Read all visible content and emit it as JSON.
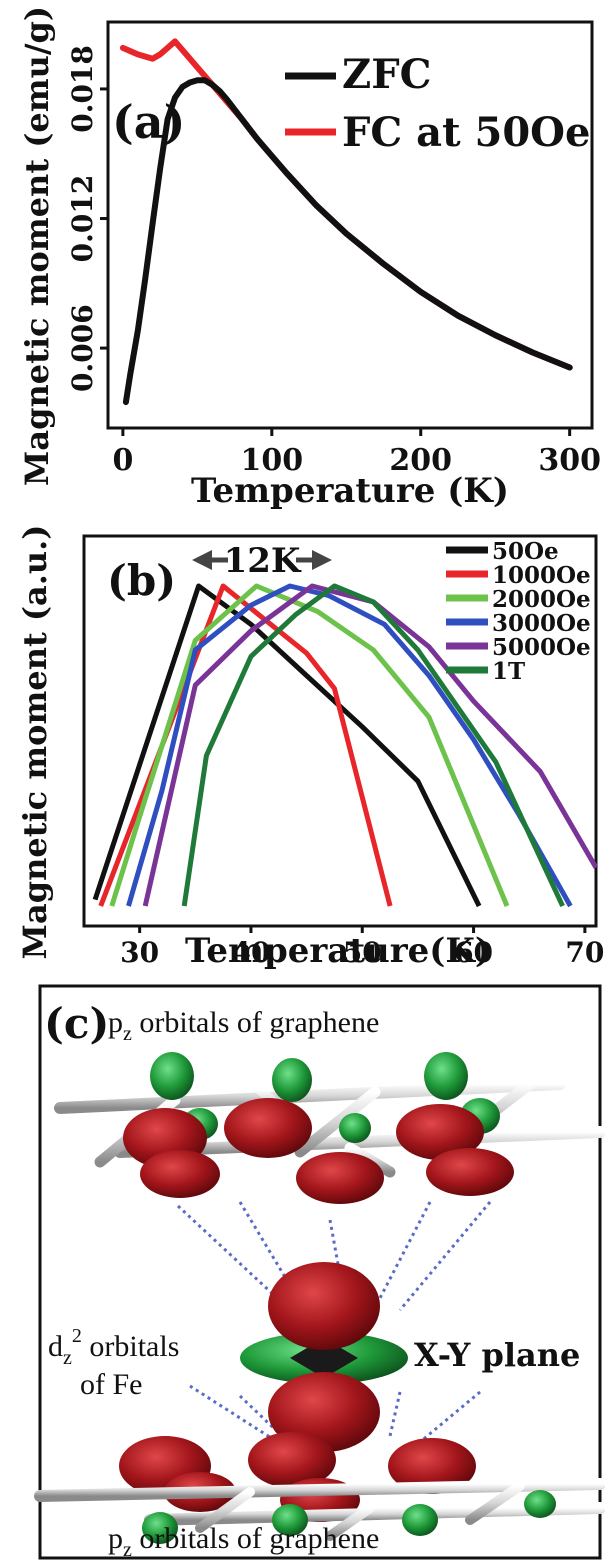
{
  "chart_data": [
    {
      "panel": "(a)",
      "type": "line",
      "xlabel": "Temperature (K)",
      "ylabel": "Magnetic moment (emu/g)",
      "xlim": [
        -10,
        315
      ],
      "ylim": [
        0.0023,
        0.0211
      ],
      "xticks": [
        0,
        100,
        200,
        300
      ],
      "yticks": [
        0.006,
        0.012,
        0.018
      ],
      "ytick_labels": [
        "0.006",
        "0.012",
        "0.018"
      ],
      "legend_position": "top-right",
      "series": [
        {
          "name": "ZFC",
          "color": "#111111",
          "x": [
            2,
            5,
            10,
            15,
            20,
            25,
            30,
            35,
            40,
            45,
            50,
            55,
            60,
            65,
            70,
            80,
            90,
            100,
            110,
            130,
            150,
            175,
            200,
            225,
            250,
            275,
            300
          ],
          "y": [
            0.0035,
            0.0048,
            0.0068,
            0.0092,
            0.0118,
            0.0143,
            0.0166,
            0.0176,
            0.0181,
            0.0183,
            0.0184,
            0.0184,
            0.0182,
            0.0179,
            0.0175,
            0.0166,
            0.0157,
            0.0149,
            0.0141,
            0.0126,
            0.0113,
            0.0099,
            0.0086,
            0.0075,
            0.0066,
            0.0058,
            0.0051
          ]
        },
        {
          "name": "FC at 50Oe",
          "color": "#e8262a",
          "x": [
            0,
            10,
            20,
            25,
            30,
            35,
            40,
            50,
            60,
            70,
            80,
            90,
            100,
            110,
            130,
            150,
            175,
            200,
            225,
            250,
            275,
            300
          ],
          "y": [
            0.0199,
            0.0196,
            0.0194,
            0.0196,
            0.0199,
            0.0202,
            0.0198,
            0.019,
            0.0182,
            0.0174,
            0.0166,
            0.0157,
            0.0149,
            0.0141,
            0.0126,
            0.0113,
            0.0099,
            0.0086,
            0.0075,
            0.0066,
            0.0058,
            0.0051
          ]
        }
      ]
    },
    {
      "panel": "(b)",
      "type": "line",
      "xlabel": "Temperature(K)",
      "ylabel": "Magnetic moment (a.u.)",
      "xlim": [
        25,
        71
      ],
      "ylim": [
        0,
        1
      ],
      "xticks": [
        30,
        40,
        50,
        60,
        70
      ],
      "annotation": "12K",
      "legend_position": "top-right",
      "series": [
        {
          "name": "50Oe",
          "color": "#111111",
          "x": [
            26,
            35.3,
            40,
            45,
            50,
            55,
            60.5
          ],
          "y": [
            0.02,
            1.0,
            0.88,
            0.72,
            0.56,
            0.39,
            0.0
          ]
        },
        {
          "name": "1000Oe",
          "color": "#e8262a",
          "x": [
            26.5,
            37.5,
            45,
            47.5,
            52.5
          ],
          "y": [
            0.0,
            1.0,
            0.79,
            0.68,
            0.0
          ]
        },
        {
          "name": "2000Oe",
          "color": "#6cc24a",
          "x": [
            27.5,
            30,
            35,
            40.5,
            46,
            51,
            56,
            63
          ],
          "y": [
            0.0,
            0.28,
            0.83,
            1.0,
            0.92,
            0.8,
            0.59,
            0.0
          ]
        },
        {
          "name": "3000Oe",
          "color": "#2f4fc0",
          "x": [
            29,
            32,
            35,
            40,
            43.5,
            47,
            52,
            56,
            60,
            64,
            68.7
          ],
          "y": [
            0.0,
            0.36,
            0.8,
            0.94,
            1.0,
            0.97,
            0.88,
            0.72,
            0.52,
            0.29,
            0.0
          ]
        },
        {
          "name": "5000Oe",
          "color": "#7a3396",
          "x": [
            30.5,
            35,
            40,
            45.5,
            51,
            56,
            60,
            66,
            71
          ],
          "y": [
            0.0,
            0.69,
            0.86,
            1.0,
            0.95,
            0.81,
            0.64,
            0.42,
            0.12
          ]
        },
        {
          "name": "1T",
          "color": "#1f7a3a",
          "x": [
            34,
            36,
            40,
            44,
            47.5,
            51,
            55,
            58,
            62,
            68
          ],
          "y": [
            0.0,
            0.47,
            0.78,
            0.91,
            1.0,
            0.95,
            0.8,
            0.65,
            0.45,
            0.0
          ]
        }
      ]
    }
  ],
  "panel_c": {
    "label": "(c)",
    "top_caption": "p",
    "top_caption_sub": "z",
    "top_caption_rest": " orbitals of graphene",
    "bottom_caption": "p",
    "bottom_caption_sub": "z",
    "bottom_caption_rest": " orbitals of graphene",
    "fe_label_line1": "d",
    "fe_label_sub": "z",
    "fe_label_sup": "2",
    "fe_label_rest": " orbitals",
    "fe_label_line2": "of Fe",
    "plane_label": "X-Y plane",
    "colors": {
      "lobe_red": "#9c1418",
      "lobe_green": "#1f9a3a",
      "bond": "#d8d8d8",
      "dash": "#5a6bc8",
      "plane_text": "#8ec23c"
    }
  }
}
